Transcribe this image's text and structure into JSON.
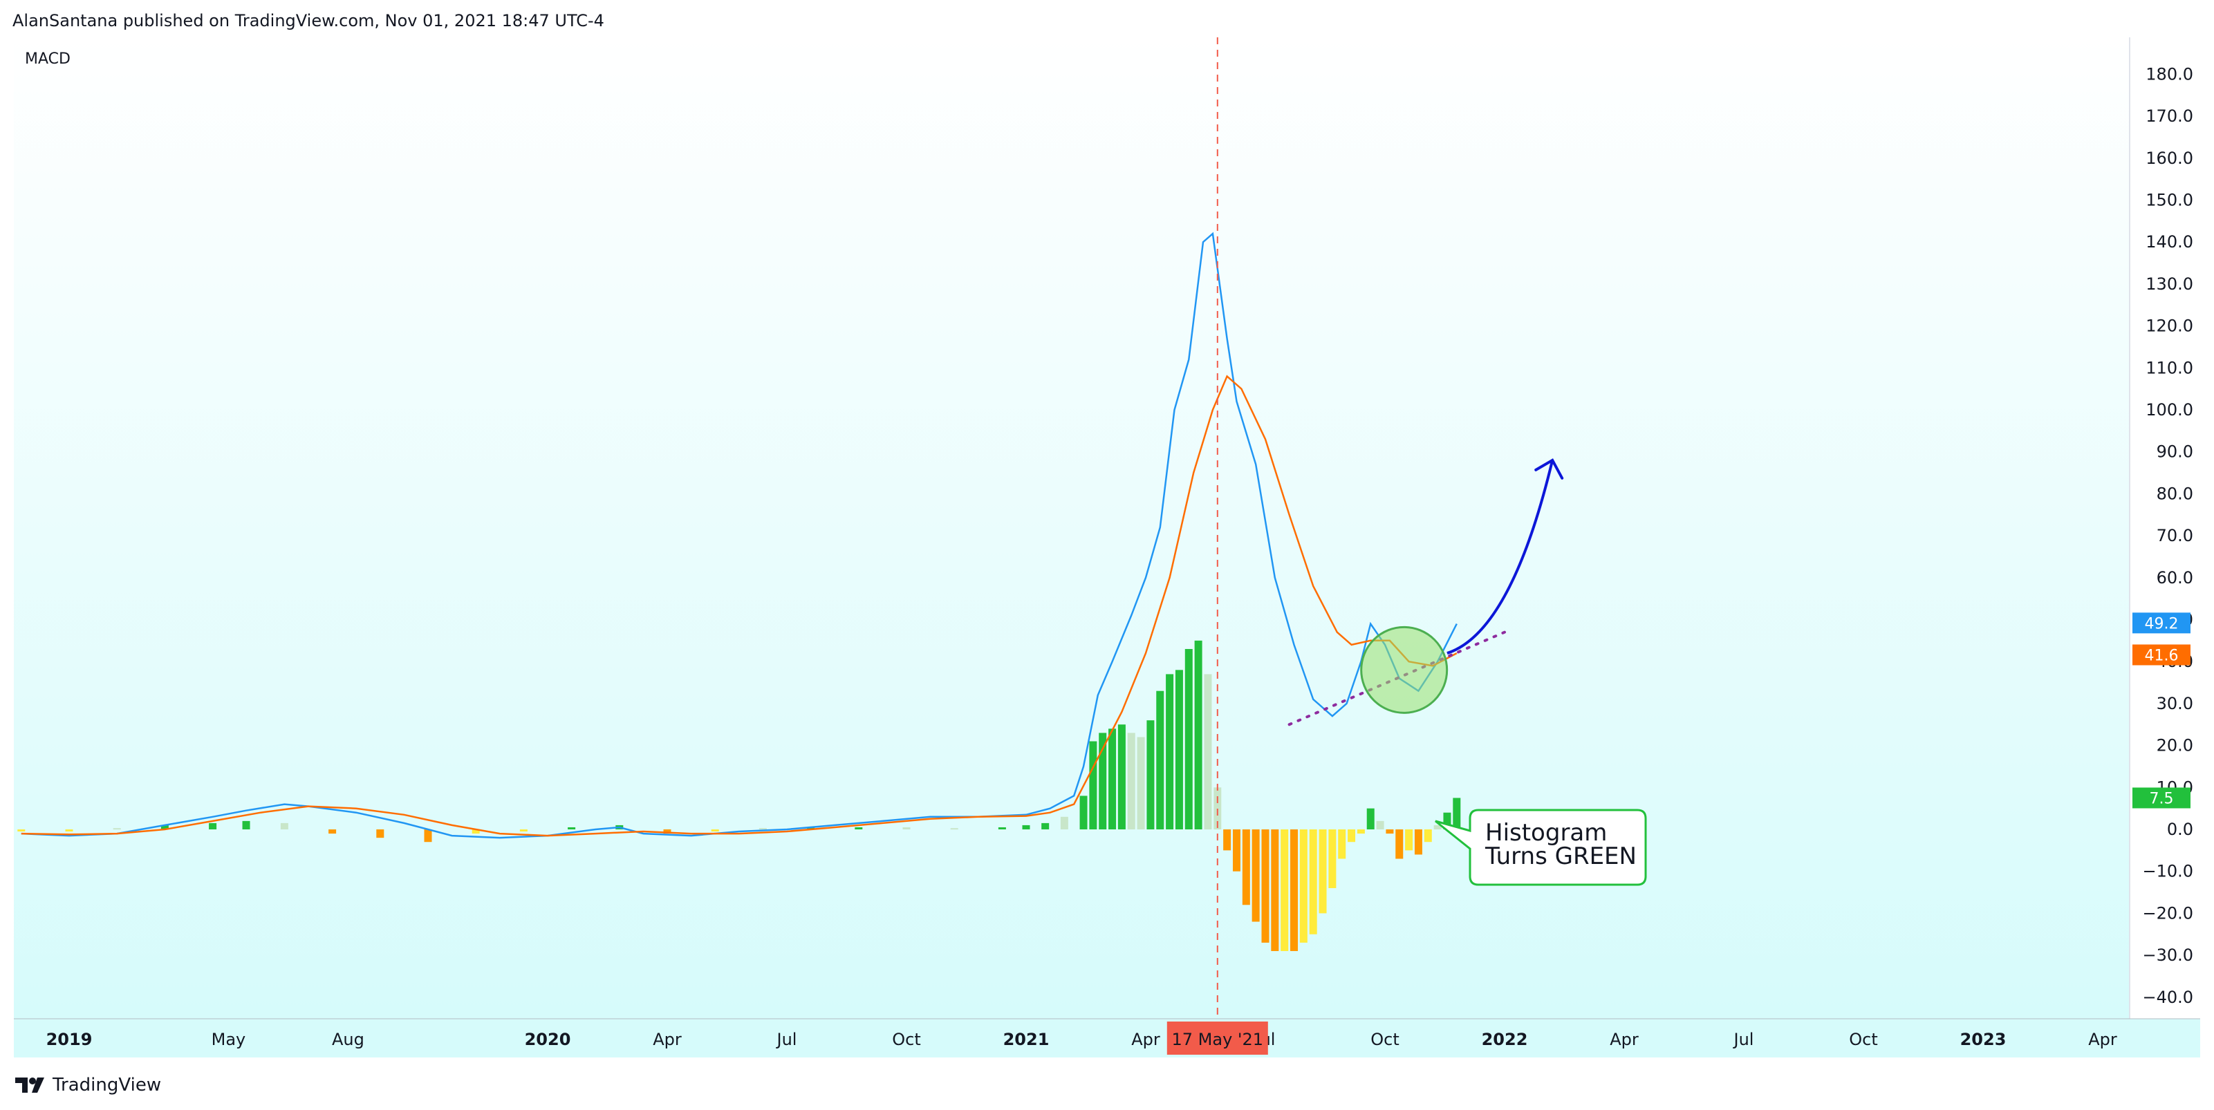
{
  "header": {
    "publisher": "AlanSantana published on TradingView.com, Nov 01, 2021 18:47 UTC-4"
  },
  "pane": {
    "title": "MACD"
  },
  "footer": {
    "brand": "TradingView"
  },
  "colors": {
    "macd_line": "#2196f3",
    "signal_line": "#ff6d00",
    "hist_up_strong": "#22c03c",
    "hist_up_weak": "#c8e6c9",
    "hist_down_strong": "#ff9800",
    "hist_down_weak": "#ffeb3b",
    "crosshair": "#f25b4a",
    "arrow": "#0c17d8",
    "trendline": "#8e2b9e",
    "highlight_circle": "#9ae06e"
  },
  "chart_data": {
    "type": "line",
    "title": "MACD",
    "x_unit": "month",
    "ylim": [
      -45,
      190
    ],
    "y_ticks": [
      180,
      170,
      160,
      150,
      140,
      130,
      120,
      110,
      100,
      90,
      80,
      70,
      60,
      50,
      40,
      30,
      20,
      10,
      0,
      -10,
      -20,
      -30,
      -40
    ],
    "x_ticks": [
      {
        "label": "2019",
        "x": 2019.0,
        "bold": true
      },
      {
        "label": "May",
        "x": 2019.333,
        "bold": false
      },
      {
        "label": "Aug",
        "x": 2019.583,
        "bold": false
      },
      {
        "label": "2020",
        "x": 2020.0,
        "bold": true
      },
      {
        "label": "Apr",
        "x": 2020.25,
        "bold": false
      },
      {
        "label": "Jul",
        "x": 2020.5,
        "bold": false
      },
      {
        "label": "Oct",
        "x": 2020.75,
        "bold": false
      },
      {
        "label": "2021",
        "x": 2021.0,
        "bold": true
      },
      {
        "label": "Apr",
        "x": 2021.25,
        "bold": false
      },
      {
        "label": "Jul",
        "x": 2021.5,
        "bold": false
      },
      {
        "label": "Oct",
        "x": 2021.75,
        "bold": false
      },
      {
        "label": "2022",
        "x": 2022.0,
        "bold": true
      },
      {
        "label": "Apr",
        "x": 2022.25,
        "bold": false
      },
      {
        "label": "Jul",
        "x": 2022.5,
        "bold": false
      },
      {
        "label": "Oct",
        "x": 2022.75,
        "bold": false
      },
      {
        "label": "2023",
        "x": 2023.0,
        "bold": true
      },
      {
        "label": "Apr",
        "x": 2023.25,
        "bold": false
      }
    ],
    "series": [
      {
        "name": "MACD",
        "color": "#2196f3",
        "points": [
          [
            2018.9,
            -1
          ],
          [
            2019.0,
            -1.5
          ],
          [
            2019.1,
            -1
          ],
          [
            2019.2,
            1
          ],
          [
            2019.3,
            3
          ],
          [
            2019.37,
            4.5
          ],
          [
            2019.45,
            6
          ],
          [
            2019.5,
            5.5
          ],
          [
            2019.6,
            4
          ],
          [
            2019.7,
            1.5
          ],
          [
            2019.8,
            -1.5
          ],
          [
            2019.9,
            -2
          ],
          [
            2020.0,
            -1.5
          ],
          [
            2020.1,
            0
          ],
          [
            2020.15,
            0.5
          ],
          [
            2020.2,
            -1
          ],
          [
            2020.3,
            -1.5
          ],
          [
            2020.4,
            -0.5
          ],
          [
            2020.5,
            0
          ],
          [
            2020.6,
            1
          ],
          [
            2020.7,
            2
          ],
          [
            2020.8,
            3
          ],
          [
            2020.9,
            3
          ],
          [
            2021.0,
            3.5
          ],
          [
            2021.05,
            5
          ],
          [
            2021.1,
            8
          ],
          [
            2021.12,
            15
          ],
          [
            2021.15,
            32
          ],
          [
            2021.18,
            40
          ],
          [
            2021.22,
            51
          ],
          [
            2021.25,
            60
          ],
          [
            2021.28,
            72
          ],
          [
            2021.31,
            100
          ],
          [
            2021.34,
            112
          ],
          [
            2021.37,
            140
          ],
          [
            2021.39,
            142
          ],
          [
            2021.42,
            117
          ],
          [
            2021.44,
            102
          ],
          [
            2021.48,
            87
          ],
          [
            2021.52,
            60
          ],
          [
            2021.56,
            44
          ],
          [
            2021.6,
            31
          ],
          [
            2021.64,
            27
          ],
          [
            2021.67,
            30
          ],
          [
            2021.7,
            40
          ],
          [
            2021.72,
            49
          ],
          [
            2021.75,
            44
          ],
          [
            2021.78,
            36
          ],
          [
            2021.82,
            33
          ],
          [
            2021.86,
            40
          ],
          [
            2021.9,
            49
          ]
        ]
      },
      {
        "name": "Signal",
        "color": "#ff6d00",
        "points": [
          [
            2018.9,
            -1
          ],
          [
            2019.0,
            -1.2
          ],
          [
            2019.1,
            -1
          ],
          [
            2019.2,
            0
          ],
          [
            2019.3,
            2
          ],
          [
            2019.4,
            4
          ],
          [
            2019.5,
            5.5
          ],
          [
            2019.6,
            5
          ],
          [
            2019.7,
            3.5
          ],
          [
            2019.8,
            1
          ],
          [
            2019.9,
            -1
          ],
          [
            2020.0,
            -1.5
          ],
          [
            2020.1,
            -1
          ],
          [
            2020.2,
            -0.5
          ],
          [
            2020.3,
            -1
          ],
          [
            2020.4,
            -1
          ],
          [
            2020.5,
            -0.5
          ],
          [
            2020.6,
            0.5
          ],
          [
            2020.7,
            1.5
          ],
          [
            2020.8,
            2.5
          ],
          [
            2020.9,
            3
          ],
          [
            2021.0,
            3.2
          ],
          [
            2021.05,
            4
          ],
          [
            2021.1,
            6
          ],
          [
            2021.15,
            17
          ],
          [
            2021.2,
            28
          ],
          [
            2021.25,
            42
          ],
          [
            2021.3,
            60
          ],
          [
            2021.35,
            85
          ],
          [
            2021.39,
            100
          ],
          [
            2021.42,
            108
          ],
          [
            2021.45,
            105
          ],
          [
            2021.5,
            93
          ],
          [
            2021.55,
            75
          ],
          [
            2021.6,
            58
          ],
          [
            2021.65,
            47
          ],
          [
            2021.68,
            44
          ],
          [
            2021.72,
            45
          ],
          [
            2021.76,
            45
          ],
          [
            2021.8,
            40
          ],
          [
            2021.85,
            39
          ],
          [
            2021.9,
            42
          ]
        ]
      }
    ],
    "histogram": [
      [
        2018.9,
        -0.5,
        "down_weak"
      ],
      [
        2019.0,
        -0.5,
        "down_weak"
      ],
      [
        2019.1,
        0.3,
        "up_weak"
      ],
      [
        2019.2,
        1,
        "up_strong"
      ],
      [
        2019.3,
        1.5,
        "up_strong"
      ],
      [
        2019.37,
        2,
        "up_strong"
      ],
      [
        2019.45,
        1.5,
        "up_weak"
      ],
      [
        2019.55,
        -1,
        "down_strong"
      ],
      [
        2019.65,
        -2,
        "down_strong"
      ],
      [
        2019.75,
        -3,
        "down_strong"
      ],
      [
        2019.85,
        -1,
        "down_weak"
      ],
      [
        2019.95,
        -0.5,
        "down_weak"
      ],
      [
        2020.05,
        0.5,
        "up_strong"
      ],
      [
        2020.15,
        1,
        "up_strong"
      ],
      [
        2020.25,
        -1,
        "down_strong"
      ],
      [
        2020.35,
        -0.5,
        "down_weak"
      ],
      [
        2020.45,
        0.3,
        "up_weak"
      ],
      [
        2020.55,
        0.5,
        "up_strong"
      ],
      [
        2020.65,
        0.5,
        "up_strong"
      ],
      [
        2020.75,
        0.5,
        "up_weak"
      ],
      [
        2020.85,
        0.3,
        "up_weak"
      ],
      [
        2020.95,
        0.5,
        "up_strong"
      ],
      [
        2021.0,
        1,
        "up_strong"
      ],
      [
        2021.04,
        1.5,
        "up_strong"
      ],
      [
        2021.08,
        3,
        "up_weak"
      ],
      [
        2021.12,
        8,
        "up_strong"
      ],
      [
        2021.14,
        21,
        "up_strong"
      ],
      [
        2021.16,
        23,
        "up_strong"
      ],
      [
        2021.18,
        24,
        "up_strong"
      ],
      [
        2021.2,
        25,
        "up_strong"
      ],
      [
        2021.22,
        23,
        "up_weak"
      ],
      [
        2021.24,
        22,
        "up_weak"
      ],
      [
        2021.26,
        26,
        "up_strong"
      ],
      [
        2021.28,
        33,
        "up_strong"
      ],
      [
        2021.3,
        37,
        "up_strong"
      ],
      [
        2021.32,
        38,
        "up_strong"
      ],
      [
        2021.34,
        43,
        "up_strong"
      ],
      [
        2021.36,
        45,
        "up_strong"
      ],
      [
        2021.38,
        37,
        "up_weak"
      ],
      [
        2021.4,
        10,
        "up_weak"
      ],
      [
        2021.42,
        -5,
        "down_strong"
      ],
      [
        2021.44,
        -10,
        "down_strong"
      ],
      [
        2021.46,
        -18,
        "down_strong"
      ],
      [
        2021.48,
        -22,
        "down_strong"
      ],
      [
        2021.5,
        -27,
        "down_strong"
      ],
      [
        2021.52,
        -29,
        "down_strong"
      ],
      [
        2021.54,
        -29,
        "down_weak"
      ],
      [
        2021.56,
        -29,
        "down_strong"
      ],
      [
        2021.58,
        -27,
        "down_weak"
      ],
      [
        2021.6,
        -25,
        "down_weak"
      ],
      [
        2021.62,
        -20,
        "down_weak"
      ],
      [
        2021.64,
        -14,
        "down_weak"
      ],
      [
        2021.66,
        -7,
        "down_weak"
      ],
      [
        2021.68,
        -3,
        "down_weak"
      ],
      [
        2021.7,
        -1,
        "down_weak"
      ],
      [
        2021.72,
        5,
        "up_strong"
      ],
      [
        2021.74,
        2,
        "up_weak"
      ],
      [
        2021.76,
        -1,
        "down_strong"
      ],
      [
        2021.78,
        -7,
        "down_strong"
      ],
      [
        2021.8,
        -5,
        "down_weak"
      ],
      [
        2021.82,
        -6,
        "down_strong"
      ],
      [
        2021.84,
        -3,
        "down_weak"
      ],
      [
        2021.86,
        1,
        "up_weak"
      ],
      [
        2021.88,
        4,
        "up_strong"
      ],
      [
        2021.9,
        7.5,
        "up_strong"
      ]
    ],
    "price_labels": [
      {
        "value": 49.2,
        "text": "49.2",
        "color": "#2196f3"
      },
      {
        "value": 41.6,
        "text": "41.6",
        "color": "#ff6d00"
      },
      {
        "value": 7.5,
        "text": "7.5",
        "color": "#22c03c"
      }
    ],
    "crosshair": {
      "x": 2021.4,
      "label": "17 May '21"
    },
    "annotations": {
      "callout": [
        "Histogram",
        "Turns GREEN"
      ],
      "circle_center": {
        "x": 2021.79,
        "y": 38
      },
      "trendline": [
        [
          2021.55,
          25
        ],
        [
          2022.0,
          47
        ]
      ],
      "arrow": [
        [
          2021.88,
          42
        ],
        [
          2022.1,
          88
        ]
      ]
    }
  }
}
